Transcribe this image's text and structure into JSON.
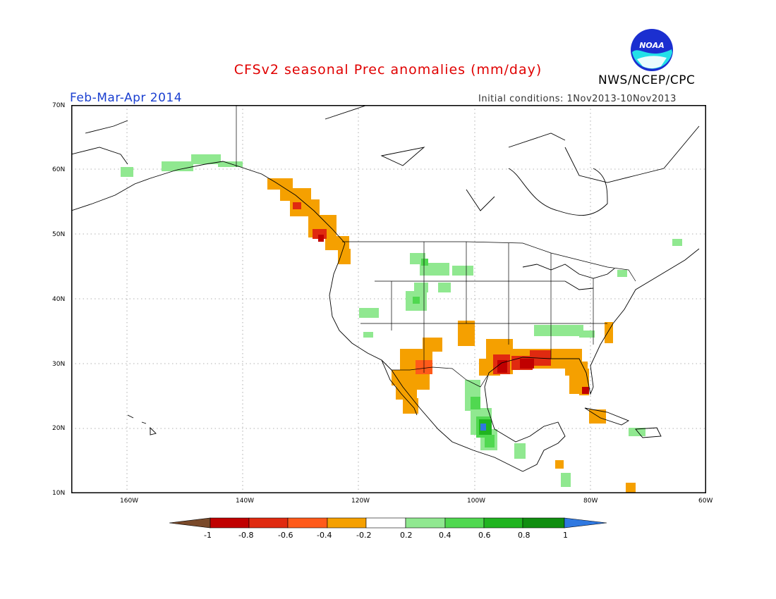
{
  "title": "CFSv2 seasonal Prec anomalies (mm/day)",
  "period": "Feb-Mar-Apr 2014",
  "initial_conditions": "Initial conditions: 1Nov2013-10Nov2013",
  "agency": "NWS/NCEP/CPC",
  "logo_text": "NOAA",
  "map": {
    "region": "North America",
    "variable": "Precipitation anomaly",
    "units": "mm/day",
    "lon_range": [
      -172,
      -60
    ],
    "lat_range": [
      10,
      70
    ],
    "lat_ticks": [
      "70N",
      "60N",
      "50N",
      "40N",
      "30N",
      "20N",
      "10N"
    ],
    "lon_ticks": [
      "160W",
      "140W",
      "120W",
      "100W",
      "80W",
      "60W"
    ],
    "grid": "dotted",
    "anomaly_regions": [
      {
        "area": "Alaska / Yukon coast",
        "category": "0.2 to 0.4"
      },
      {
        "area": "British Columbia coast",
        "category": "-0.4 to -0.6"
      },
      {
        "area": "Northern Rockies / Plains",
        "category": "0.2 to 0.4"
      },
      {
        "area": "Southern California / Arizona",
        "category": "-0.2 to -0.4"
      },
      {
        "area": "Texas Gulf coast",
        "category": "-0.6 to -0.8"
      },
      {
        "area": "Louisiana / Gulf coast",
        "category": "-0.4 to -0.8"
      },
      {
        "area": "Florida",
        "category": "-0.2 to -0.6"
      },
      {
        "area": "Eastern Mexico",
        "category": "0.4 to 1.0"
      },
      {
        "area": "Tennessee Valley",
        "category": "0.2 to 0.4"
      },
      {
        "area": "Caribbean",
        "category": "-0.2 to -0.4"
      }
    ]
  },
  "colorbar": {
    "labels": [
      "-1",
      "-0.8",
      "-0.6",
      "-0.4",
      "-0.2",
      "0.2",
      "0.4",
      "0.6",
      "0.8",
      "1"
    ],
    "colors": [
      "#7a4a2a",
      "#c00000",
      "#e02a10",
      "#ff5a1a",
      "#f5a000",
      "#ffffff",
      "#90e890",
      "#50d850",
      "#20b420",
      "#108e10",
      "#2f78e0"
    ]
  }
}
